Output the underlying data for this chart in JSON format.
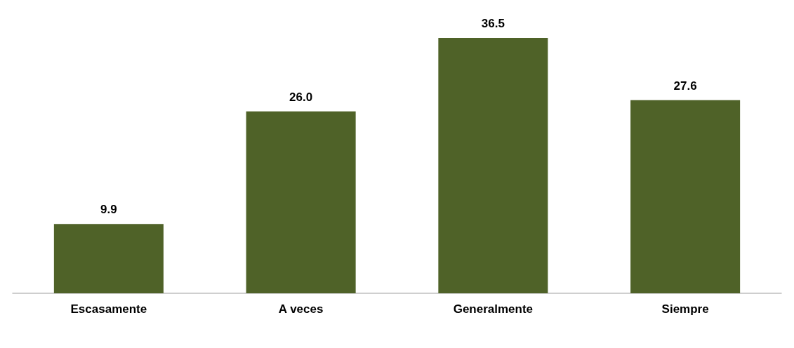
{
  "chart_data": {
    "type": "bar",
    "categories": [
      "Escasamente",
      "A veces",
      "Generalmente",
      "Siempre"
    ],
    "values": [
      9.9,
      26.0,
      36.5,
      27.6
    ],
    "value_labels": [
      "9.9",
      "26.0",
      "36.5",
      "27.6"
    ],
    "color": "#4f6228"
  }
}
